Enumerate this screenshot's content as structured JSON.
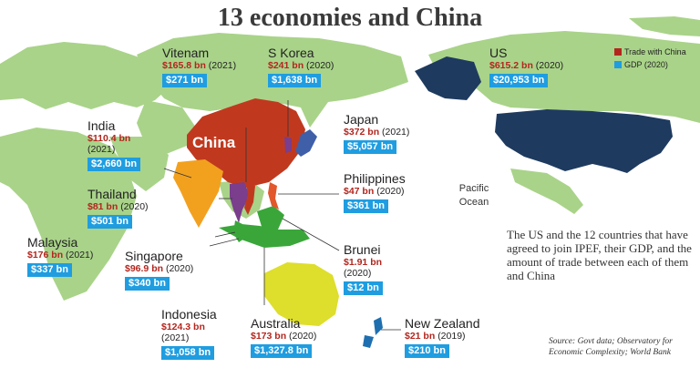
{
  "title": "13 economies and China",
  "legend": {
    "trade_label": "Trade with China",
    "gdp_label": "GDP (2020)",
    "trade_color": "#b3261e",
    "gdp_color": "#1f9de0"
  },
  "map_colors": {
    "land": "#a9d389",
    "ocean": "#ffffff",
    "china": "#c0391f",
    "us": "#1e3a5f",
    "india": "#f2a11f",
    "australia": "#dede2c",
    "thailand": "#7a3e8c",
    "indonesia": "#3aa63a",
    "philippines": "#e2572b",
    "japan": "#3f5fa8",
    "new_zealand": "#1e6fb0"
  },
  "china_label": "China",
  "countries": [
    {
      "name": "Vitenam",
      "trade": "$165.8 bn",
      "trade_year": "(2021)",
      "gdp": "$271 bn"
    },
    {
      "name": "S Korea",
      "trade": "$241 bn",
      "trade_year": "(2020)",
      "gdp": "$1,638 bn"
    },
    {
      "name": "US",
      "trade": "$615.2 bn",
      "trade_year": "(2020)",
      "gdp": "$20,953 bn"
    },
    {
      "name": "India",
      "trade": "$110.4 bn",
      "trade_year": "(2021)",
      "gdp": "$2,660 bn"
    },
    {
      "name": "Japan",
      "trade": "$372 bn",
      "trade_year": "(2021)",
      "gdp": "$5,057 bn"
    },
    {
      "name": "Thailand",
      "trade": "$81 bn",
      "trade_year": "(2020)",
      "gdp": "$501 bn"
    },
    {
      "name": "Philippines",
      "trade": "$47 bn",
      "trade_year": "(2020)",
      "gdp": "$361 bn"
    },
    {
      "name": "Malaysia",
      "trade": "$176 bn",
      "trade_year": "(2021)",
      "gdp": "$337 bn"
    },
    {
      "name": "Singapore",
      "trade": "$96.9 bn",
      "trade_year": "(2020)",
      "gdp": "$340 bn"
    },
    {
      "name": "Brunei",
      "trade": "$1.91 bn",
      "trade_year": "(2020)",
      "gdp": "$12 bn"
    },
    {
      "name": "Indonesia",
      "trade": "$124.3 bn",
      "trade_year": "(2021)",
      "gdp": "$1,058 bn"
    },
    {
      "name": "Australia",
      "trade": "$173 bn",
      "trade_year": "(2020)",
      "gdp": "$1,327.8 bn"
    },
    {
      "name": "New Zealand",
      "trade": "$21 bn",
      "trade_year": "(2019)",
      "gdp": "$210 bn"
    }
  ],
  "ocean_label": "Pacific Ocean",
  "description": "The US and the 12 countries that have agreed to join IPEF, their GDP, and the amount of trade between each of them and China",
  "source": "Source: Govt data; Observatory for Economic Complexity; World Bank"
}
